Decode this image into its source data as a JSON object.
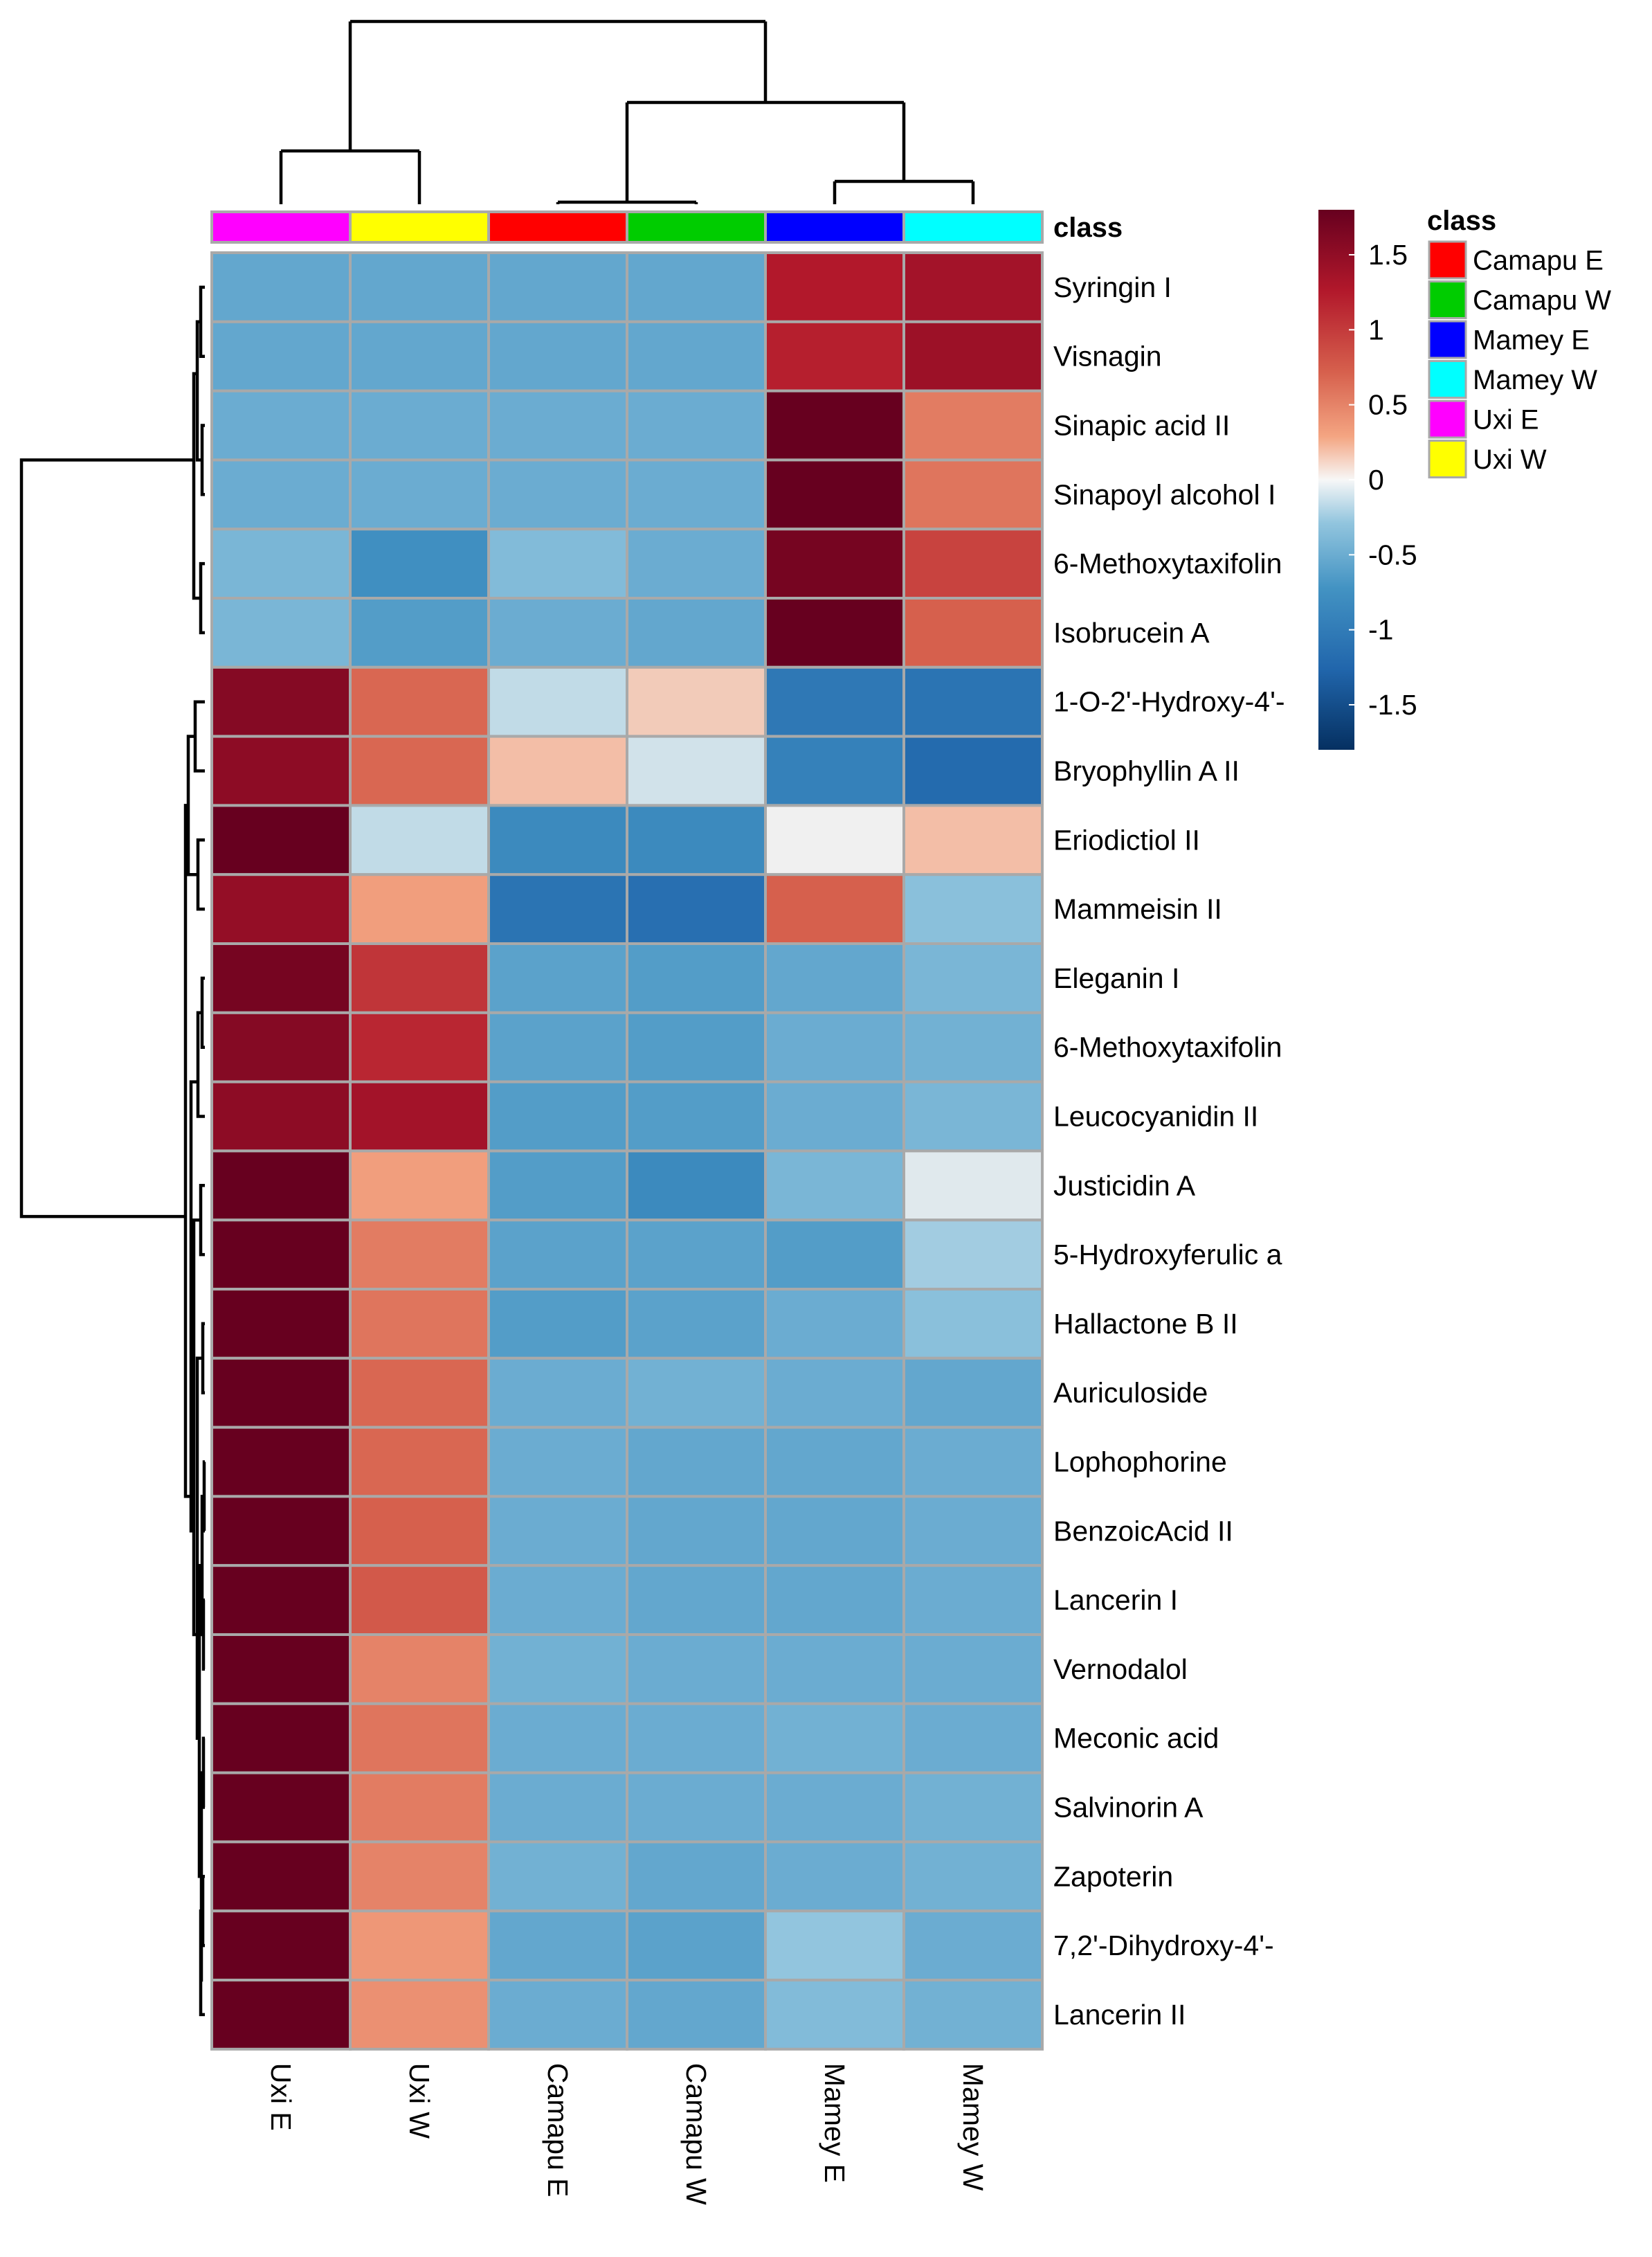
{
  "chart_data": {
    "type": "heatmap",
    "title": "",
    "class_annotation_label": "class",
    "columns": [
      "Uxi E",
      "Uxi W",
      "Camapu E",
      "Camapu W",
      "Mamey E",
      "Mamey W"
    ],
    "column_classes": [
      "Uxi E",
      "Uxi W",
      "Camapu E",
      "Camapu W",
      "Mamey E",
      "Mamey W"
    ],
    "rows": [
      "Syringin I",
      "Visnagin",
      "Sinapic acid II",
      "Sinapoyl alcohol I",
      "6-Methoxytaxifolin",
      "Isobrucein A",
      "1-O-2'-Hydroxy-4'-",
      "Bryophyllin A II",
      "Eriodictiol II",
      "Mammeisin II",
      "Eleganin I",
      "6-Methoxytaxifolin",
      "Leucocyanidin II",
      "Justicidin A",
      "5-Hydroxyferulic a",
      "Hallactone B II",
      "Auriculoside",
      "Lophophorine",
      "BenzoicAcid II",
      "Lancerin I",
      "Vernodalol",
      "Meconic acid",
      "Salvinorin A",
      "Zapoterin",
      "7,2'-Dihydroxy-4'-",
      "Lancerin II"
    ],
    "values": [
      [
        -0.6,
        -0.6,
        -0.6,
        -0.6,
        1.3,
        1.4
      ],
      [
        -0.6,
        -0.6,
        -0.6,
        -0.6,
        1.25,
        1.45
      ],
      [
        -0.55,
        -0.55,
        -0.55,
        -0.55,
        2.0,
        0.6
      ],
      [
        -0.55,
        -0.55,
        -0.55,
        -0.55,
        2.0,
        0.65
      ],
      [
        -0.45,
        -0.85,
        -0.4,
        -0.55,
        1.7,
        1.0
      ],
      [
        -0.45,
        -0.7,
        -0.55,
        -0.6,
        1.9,
        0.8
      ],
      [
        1.6,
        0.75,
        -0.15,
        0.15,
        -1.1,
        -1.15
      ],
      [
        1.55,
        0.75,
        0.2,
        -0.1,
        -1.0,
        -1.25
      ],
      [
        2.0,
        -0.15,
        -0.9,
        -0.9,
        0.0,
        0.2
      ],
      [
        1.5,
        0.35,
        -1.15,
        -1.2,
        0.8,
        -0.35
      ],
      [
        1.7,
        1.1,
        -0.65,
        -0.7,
        -0.6,
        -0.45
      ],
      [
        1.6,
        1.2,
        -0.65,
        -0.7,
        -0.55,
        -0.5
      ],
      [
        1.55,
        1.4,
        -0.7,
        -0.7,
        -0.55,
        -0.45
      ],
      [
        2.0,
        0.35,
        -0.7,
        -0.9,
        -0.45,
        -0.05
      ],
      [
        1.95,
        0.6,
        -0.65,
        -0.65,
        -0.7,
        -0.25
      ],
      [
        1.9,
        0.65,
        -0.7,
        -0.65,
        -0.55,
        -0.35
      ],
      [
        1.9,
        0.75,
        -0.55,
        -0.5,
        -0.55,
        -0.6
      ],
      [
        1.8,
        0.75,
        -0.55,
        -0.6,
        -0.6,
        -0.55
      ],
      [
        1.85,
        0.8,
        -0.55,
        -0.6,
        -0.6,
        -0.55
      ],
      [
        1.8,
        0.85,
        -0.55,
        -0.6,
        -0.6,
        -0.55
      ],
      [
        1.9,
        0.55,
        -0.5,
        -0.55,
        -0.55,
        -0.55
      ],
      [
        1.9,
        0.65,
        -0.55,
        -0.55,
        -0.5,
        -0.55
      ],
      [
        1.9,
        0.6,
        -0.55,
        -0.55,
        -0.55,
        -0.5
      ],
      [
        1.95,
        0.55,
        -0.5,
        -0.6,
        -0.55,
        -0.5
      ],
      [
        2.0,
        0.4,
        -0.6,
        -0.65,
        -0.3,
        -0.55
      ],
      [
        2.0,
        0.45,
        -0.55,
        -0.6,
        -0.4,
        -0.5
      ]
    ],
    "color_scale": {
      "ticks": [
        1.5,
        1,
        0.5,
        0,
        -0.5,
        -1,
        -1.5
      ],
      "range": [
        -1.8,
        1.8
      ],
      "low": "#053061",
      "mid": "#f7f7f7",
      "high": "#67001f"
    },
    "class_legend": {
      "title": "class",
      "items": [
        {
          "label": "Camapu E",
          "color": "#ff0000"
        },
        {
          "label": "Camapu W",
          "color": "#00cc00"
        },
        {
          "label": "Mamey E",
          "color": "#0000ff"
        },
        {
          "label": "Mamey W",
          "color": "#00ffff"
        },
        {
          "label": "Uxi E",
          "color": "#ff00ff"
        },
        {
          "label": "Uxi W",
          "color": "#ffff00"
        }
      ]
    }
  }
}
